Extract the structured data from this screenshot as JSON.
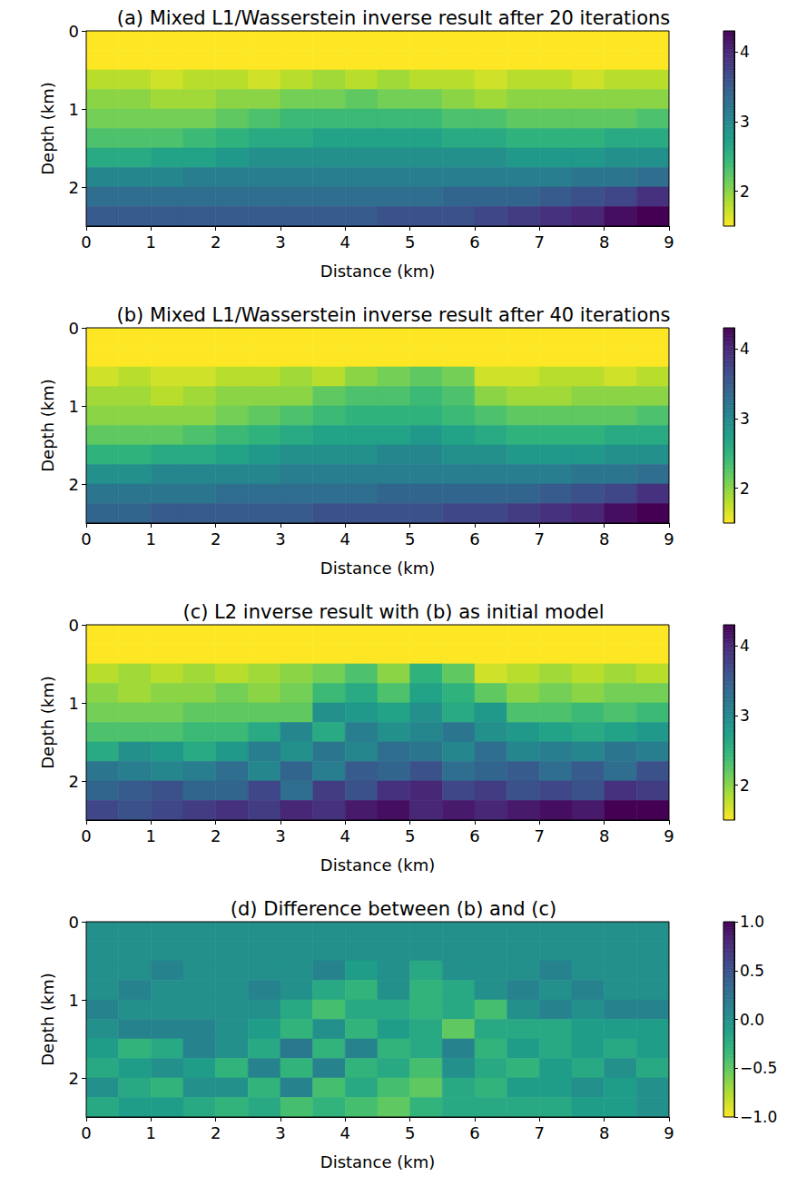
{
  "chart_data": [
    {
      "type": "heatmap",
      "title": "(a) Mixed L1/Wasserstein inverse result after 20 iterations",
      "x_label": "Distance (km)",
      "y_label": "Depth (km)",
      "color": "viridis_r",
      "xlim": [
        0,
        9
      ],
      "xticks": [
        0,
        1,
        2,
        3,
        4,
        5,
        6,
        7,
        8,
        9
      ],
      "ylim": [
        2.5,
        0
      ],
      "yticks": [
        0,
        1,
        2
      ],
      "x_edges": [
        0,
        0.5,
        1,
        1.5,
        2,
        2.5,
        3,
        3.5,
        4,
        4.5,
        5,
        5.5,
        6,
        6.5,
        7,
        7.5,
        8,
        8.5,
        9
      ],
      "y_edges": [
        0,
        0.25,
        0.5,
        0.75,
        1,
        1.25,
        1.5,
        1.75,
        2,
        2.25,
        2.5
      ],
      "cells": [
        [
          1.5,
          1.5,
          1.5,
          1.5,
          1.5,
          1.5,
          1.5,
          1.5,
          1.5,
          1.5,
          1.5,
          1.5,
          1.5,
          1.5,
          1.5,
          1.5,
          1.5,
          1.5
        ],
        [
          1.5,
          1.5,
          1.5,
          1.5,
          1.5,
          1.5,
          1.5,
          1.5,
          1.5,
          1.5,
          1.5,
          1.5,
          1.5,
          1.5,
          1.5,
          1.5,
          1.5,
          1.5
        ],
        [
          1.8,
          1.8,
          1.7,
          1.8,
          1.8,
          1.7,
          1.8,
          1.9,
          1.8,
          1.9,
          1.8,
          1.8,
          1.7,
          1.8,
          1.8,
          1.7,
          1.8,
          1.8
        ],
        [
          2.0,
          2.0,
          1.9,
          1.9,
          2.0,
          2.0,
          2.1,
          2.1,
          2.2,
          2.1,
          2.1,
          2.0,
          1.9,
          2.0,
          2.0,
          2.0,
          2.0,
          2.0
        ],
        [
          2.1,
          2.1,
          2.1,
          2.1,
          2.2,
          2.3,
          2.4,
          2.4,
          2.4,
          2.4,
          2.4,
          2.3,
          2.3,
          2.2,
          2.2,
          2.2,
          2.2,
          2.3
        ],
        [
          2.3,
          2.3,
          2.3,
          2.4,
          2.5,
          2.6,
          2.6,
          2.7,
          2.7,
          2.7,
          2.7,
          2.6,
          2.6,
          2.5,
          2.5,
          2.5,
          2.6,
          2.6
        ],
        [
          2.6,
          2.6,
          2.7,
          2.7,
          2.8,
          2.9,
          2.9,
          2.9,
          2.9,
          2.9,
          2.9,
          2.9,
          2.9,
          2.8,
          2.8,
          2.8,
          2.9,
          2.9
        ],
        [
          3.0,
          3.0,
          3.0,
          3.1,
          3.1,
          3.1,
          3.1,
          3.1,
          3.1,
          3.1,
          3.1,
          3.1,
          3.1,
          3.1,
          3.1,
          3.2,
          3.2,
          3.3
        ],
        [
          3.3,
          3.3,
          3.3,
          3.3,
          3.3,
          3.3,
          3.3,
          3.3,
          3.3,
          3.3,
          3.3,
          3.4,
          3.4,
          3.4,
          3.5,
          3.6,
          3.7,
          3.9
        ],
        [
          3.5,
          3.5,
          3.5,
          3.5,
          3.5,
          3.5,
          3.5,
          3.5,
          3.5,
          3.6,
          3.6,
          3.6,
          3.7,
          3.8,
          3.9,
          4.0,
          4.2,
          4.3
        ]
      ],
      "colorbar": {
        "range": [
          1.5,
          4.3
        ],
        "ticks": [
          2,
          3,
          4
        ]
      }
    },
    {
      "type": "heatmap",
      "title": "(b) Mixed L1/Wasserstein inverse result after 40 iterations",
      "x_label": "Distance (km)",
      "y_label": "Depth (km)",
      "color": "viridis_r",
      "xlim": [
        0,
        9
      ],
      "xticks": [
        0,
        1,
        2,
        3,
        4,
        5,
        6,
        7,
        8,
        9
      ],
      "ylim": [
        2.5,
        0
      ],
      "yticks": [
        0,
        1,
        2
      ],
      "x_edges": [
        0,
        0.5,
        1,
        1.5,
        2,
        2.5,
        3,
        3.5,
        4,
        4.5,
        5,
        5.5,
        6,
        6.5,
        7,
        7.5,
        8,
        8.5,
        9
      ],
      "y_edges": [
        0,
        0.25,
        0.5,
        0.75,
        1,
        1.25,
        1.5,
        1.75,
        2,
        2.25,
        2.5
      ],
      "cells": [
        [
          1.5,
          1.5,
          1.5,
          1.5,
          1.5,
          1.5,
          1.5,
          1.5,
          1.5,
          1.5,
          1.5,
          1.5,
          1.5,
          1.5,
          1.5,
          1.5,
          1.5,
          1.5
        ],
        [
          1.5,
          1.5,
          1.5,
          1.5,
          1.5,
          1.5,
          1.5,
          1.5,
          1.5,
          1.5,
          1.5,
          1.5,
          1.5,
          1.5,
          1.5,
          1.5,
          1.5,
          1.5
        ],
        [
          1.7,
          1.8,
          1.7,
          1.7,
          1.8,
          1.8,
          1.9,
          1.8,
          2.0,
          2.1,
          2.2,
          2.1,
          1.7,
          1.7,
          1.8,
          1.8,
          1.7,
          1.8
        ],
        [
          1.9,
          1.9,
          1.8,
          1.9,
          2.0,
          2.0,
          2.0,
          2.2,
          2.3,
          2.3,
          2.4,
          2.3,
          2.0,
          1.9,
          1.9,
          2.0,
          2.0,
          2.0
        ],
        [
          2.0,
          2.0,
          2.0,
          2.0,
          2.1,
          2.2,
          2.3,
          2.4,
          2.5,
          2.5,
          2.5,
          2.4,
          2.3,
          2.2,
          2.2,
          2.2,
          2.2,
          2.3
        ],
        [
          2.2,
          2.2,
          2.2,
          2.3,
          2.4,
          2.5,
          2.6,
          2.7,
          2.7,
          2.7,
          2.8,
          2.7,
          2.6,
          2.5,
          2.5,
          2.5,
          2.6,
          2.6
        ],
        [
          2.5,
          2.5,
          2.6,
          2.6,
          2.7,
          2.8,
          2.9,
          2.9,
          2.9,
          3.0,
          3.0,
          2.9,
          2.9,
          2.8,
          2.8,
          2.8,
          2.9,
          2.9
        ],
        [
          2.9,
          2.9,
          3.0,
          3.0,
          3.0,
          3.0,
          3.1,
          3.1,
          3.1,
          3.1,
          3.1,
          3.1,
          3.1,
          3.1,
          3.1,
          3.2,
          3.2,
          3.3
        ],
        [
          3.2,
          3.2,
          3.2,
          3.2,
          3.3,
          3.3,
          3.3,
          3.3,
          3.3,
          3.4,
          3.4,
          3.4,
          3.4,
          3.4,
          3.5,
          3.6,
          3.7,
          3.9
        ],
        [
          3.4,
          3.4,
          3.5,
          3.5,
          3.5,
          3.5,
          3.5,
          3.6,
          3.6,
          3.6,
          3.6,
          3.7,
          3.7,
          3.8,
          3.9,
          4.0,
          4.2,
          4.3
        ]
      ],
      "colorbar": {
        "range": [
          1.5,
          4.3
        ],
        "ticks": [
          2,
          3,
          4
        ]
      }
    },
    {
      "type": "heatmap",
      "title": "(c) L2 inverse result with (b) as initial model",
      "x_label": "Distance (km)",
      "y_label": "Depth (km)",
      "color": "viridis_r",
      "xlim": [
        0,
        9
      ],
      "xticks": [
        0,
        1,
        2,
        3,
        4,
        5,
        6,
        7,
        8,
        9
      ],
      "ylim": [
        2.5,
        0
      ],
      "yticks": [
        0,
        1,
        2
      ],
      "x_edges": [
        0,
        0.5,
        1,
        1.5,
        2,
        2.5,
        3,
        3.5,
        4,
        4.5,
        5,
        5.5,
        6,
        6.5,
        7,
        7.5,
        8,
        8.5,
        9
      ],
      "y_edges": [
        0,
        0.25,
        0.5,
        0.75,
        1,
        1.25,
        1.5,
        1.75,
        2,
        2.25,
        2.5
      ],
      "cells": [
        [
          1.5,
          1.5,
          1.5,
          1.5,
          1.5,
          1.5,
          1.5,
          1.5,
          1.5,
          1.5,
          1.5,
          1.5,
          1.5,
          1.5,
          1.5,
          1.5,
          1.5,
          1.5
        ],
        [
          1.5,
          1.5,
          1.5,
          1.5,
          1.5,
          1.5,
          1.5,
          1.5,
          1.5,
          1.5,
          1.5,
          1.5,
          1.5,
          1.5,
          1.5,
          1.5,
          1.5,
          1.5
        ],
        [
          1.8,
          1.9,
          1.8,
          1.9,
          1.8,
          1.9,
          2.0,
          2.1,
          2.3,
          2.0,
          2.5,
          2.2,
          1.7,
          1.8,
          1.9,
          1.8,
          1.9,
          1.8
        ],
        [
          2.0,
          1.9,
          2.0,
          2.0,
          2.1,
          2.0,
          2.1,
          2.4,
          2.6,
          2.3,
          2.7,
          2.5,
          2.2,
          2.0,
          2.1,
          2.0,
          2.1,
          2.1
        ],
        [
          2.1,
          2.1,
          2.1,
          2.2,
          2.2,
          2.2,
          2.2,
          2.9,
          2.8,
          2.7,
          2.9,
          2.6,
          2.8,
          2.3,
          2.3,
          2.4,
          2.3,
          2.4
        ],
        [
          2.3,
          2.3,
          2.3,
          2.4,
          2.4,
          2.6,
          3.0,
          2.6,
          3.1,
          2.9,
          3.0,
          3.2,
          2.9,
          2.8,
          2.7,
          2.6,
          2.7,
          2.8
        ],
        [
          2.6,
          2.9,
          2.8,
          2.6,
          2.8,
          3.1,
          2.9,
          3.2,
          3.0,
          3.3,
          3.2,
          3.0,
          3.3,
          3.0,
          3.1,
          3.0,
          3.2,
          3.1
        ],
        [
          3.2,
          3.1,
          3.0,
          3.1,
          3.3,
          3.0,
          3.4,
          3.1,
          3.5,
          3.4,
          3.6,
          3.3,
          3.4,
          3.5,
          3.3,
          3.5,
          3.3,
          3.6
        ],
        [
          3.4,
          3.5,
          3.6,
          3.4,
          3.4,
          3.7,
          3.3,
          3.8,
          3.6,
          3.9,
          4.0,
          3.7,
          3.8,
          3.6,
          3.7,
          3.6,
          3.9,
          3.8
        ],
        [
          3.7,
          3.6,
          3.7,
          3.8,
          3.9,
          3.8,
          4.0,
          3.9,
          4.1,
          4.2,
          4.0,
          4.1,
          4.0,
          4.1,
          4.2,
          4.1,
          4.3,
          4.3
        ]
      ],
      "colorbar": {
        "range": [
          1.5,
          4.3
        ],
        "ticks": [
          2,
          3,
          4
        ]
      }
    },
    {
      "type": "heatmap",
      "title": "(d) Difference between (b) and (c)",
      "x_label": "Distance (km)",
      "y_label": "Depth (km)",
      "color": "viridis_r",
      "xlim": [
        0,
        9
      ],
      "xticks": [
        0,
        1,
        2,
        3,
        4,
        5,
        6,
        7,
        8,
        9
      ],
      "ylim": [
        2.5,
        0
      ],
      "yticks": [
        0,
        1,
        2
      ],
      "x_edges": [
        0,
        0.5,
        1,
        1.5,
        2,
        2.5,
        3,
        3.5,
        4,
        4.5,
        5,
        5.5,
        6,
        6.5,
        7,
        7.5,
        8,
        8.5,
        9
      ],
      "y_edges": [
        0,
        0.25,
        0.5,
        0.75,
        1,
        1.25,
        1.5,
        1.75,
        2,
        2.25,
        2.5
      ],
      "cells": [
        [
          0.0,
          0.0,
          0.0,
          0.0,
          0.0,
          0.0,
          0.0,
          0.0,
          0.0,
          0.0,
          0.0,
          0.0,
          0.0,
          0.0,
          0.0,
          0.0,
          0.0,
          0.0
        ],
        [
          0.0,
          0.0,
          0.0,
          0.0,
          0.0,
          0.0,
          0.0,
          0.0,
          0.0,
          0.0,
          0.0,
          0.0,
          0.0,
          0.0,
          0.0,
          0.0,
          0.0,
          0.0
        ],
        [
          0.0,
          0.0,
          0.1,
          0.0,
          0.0,
          0.0,
          0.0,
          0.1,
          -0.1,
          0.0,
          -0.2,
          0.0,
          0.0,
          0.0,
          0.1,
          0.0,
          0.0,
          0.0
        ],
        [
          0.0,
          0.1,
          0.0,
          0.0,
          0.0,
          0.1,
          0.0,
          -0.2,
          -0.3,
          0.0,
          -0.3,
          -0.2,
          0.0,
          0.1,
          0.0,
          0.1,
          0.0,
          0.0
        ],
        [
          0.1,
          0.0,
          0.0,
          0.0,
          0.0,
          0.0,
          -0.2,
          -0.4,
          -0.2,
          -0.2,
          -0.3,
          -0.2,
          -0.4,
          0.0,
          0.1,
          0.0,
          0.1,
          0.1
        ],
        [
          0.0,
          0.1,
          0.1,
          0.1,
          0.0,
          -0.1,
          -0.3,
          0.0,
          -0.3,
          -0.1,
          -0.2,
          -0.5,
          -0.2,
          -0.2,
          -0.2,
          -0.1,
          -0.1,
          -0.1
        ],
        [
          -0.1,
          -0.3,
          -0.2,
          0.1,
          0.0,
          -0.2,
          0.2,
          -0.3,
          0.1,
          -0.3,
          -0.2,
          0.1,
          -0.3,
          -0.1,
          -0.2,
          -0.1,
          -0.2,
          -0.1
        ],
        [
          -0.2,
          -0.1,
          0.0,
          -0.1,
          -0.3,
          0.1,
          -0.3,
          0.1,
          -0.3,
          -0.2,
          -0.4,
          0.0,
          -0.2,
          -0.3,
          -0.1,
          -0.2,
          0.0,
          -0.2
        ],
        [
          0.0,
          -0.2,
          -0.3,
          0.0,
          0.0,
          -0.3,
          0.1,
          -0.4,
          -0.2,
          -0.4,
          -0.5,
          -0.2,
          -0.3,
          -0.1,
          -0.1,
          0.0,
          -0.1,
          0.0
        ],
        [
          -0.2,
          -0.1,
          -0.1,
          -0.2,
          -0.3,
          -0.2,
          -0.4,
          -0.3,
          -0.4,
          -0.5,
          -0.3,
          -0.2,
          -0.2,
          -0.2,
          -0.2,
          -0.1,
          -0.1,
          0.0
        ]
      ],
      "colorbar": {
        "range": [
          -1,
          1
        ],
        "ticks": [
          {
            "value": -1,
            "label": "−1.0"
          },
          {
            "value": -0.5,
            "label": "−0.5"
          },
          {
            "value": 0,
            "label": "0.0"
          },
          {
            "value": 0.5,
            "label": "0.5"
          },
          {
            "value": 1,
            "label": "1.0"
          }
        ]
      }
    }
  ]
}
